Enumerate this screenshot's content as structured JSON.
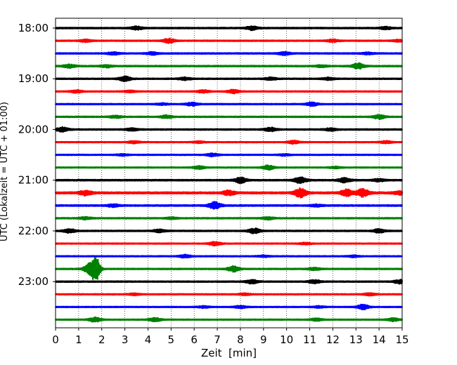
{
  "chart_data": {
    "type": "line",
    "title": "",
    "xlabel": "Zeit  [min]",
    "ylabel": "UTC (Lokalzeit = UTC + 01:00)",
    "xlim": [
      0,
      15
    ],
    "x_ticks": [
      "0",
      "1",
      "2",
      "3",
      "4",
      "5",
      "6",
      "7",
      "8",
      "9",
      "10",
      "11",
      "12",
      "13",
      "14",
      "15"
    ],
    "y_ticks": [
      "18:00",
      "19:00",
      "20:00",
      "21:00",
      "22:00",
      "23:00"
    ],
    "grid": "vertical dotted lines at each minute",
    "trace_colors": [
      "#000000",
      "#ff0000",
      "#0000ff",
      "#008000"
    ],
    "traces": [
      {
        "start": "18:00",
        "noise": 0.18,
        "events": [
          [
            3.5,
            0.5
          ],
          [
            8.5,
            0.6
          ],
          [
            14.3,
            0.4
          ]
        ]
      },
      {
        "start": "18:15",
        "noise": 0.16,
        "events": [
          [
            1.3,
            0.4
          ],
          [
            4.9,
            0.7
          ],
          [
            12.0,
            0.4
          ],
          [
            14.8,
            0.3
          ]
        ]
      },
      {
        "start": "18:30",
        "noise": 0.17,
        "events": [
          [
            2.5,
            0.4
          ],
          [
            4.2,
            0.4
          ],
          [
            9.9,
            0.5
          ],
          [
            13.5,
            0.3
          ]
        ]
      },
      {
        "start": "18:45",
        "noise": 0.18,
        "events": [
          [
            0.6,
            0.5
          ],
          [
            2.2,
            0.4
          ],
          [
            13.1,
            0.9
          ],
          [
            11.5,
            0.3
          ]
        ]
      },
      {
        "start": "19:00",
        "noise": 0.17,
        "events": [
          [
            3.0,
            0.8
          ],
          [
            5.6,
            0.4
          ],
          [
            9.3,
            0.4
          ],
          [
            11.8,
            0.4
          ]
        ]
      },
      {
        "start": "19:15",
        "noise": 0.15,
        "events": [
          [
            0.9,
            0.4
          ],
          [
            3.2,
            0.3
          ],
          [
            7.7,
            0.6
          ],
          [
            6.4,
            0.4
          ]
        ]
      },
      {
        "start": "19:30",
        "noise": 0.16,
        "events": [
          [
            5.9,
            0.5
          ],
          [
            11.1,
            0.6
          ],
          [
            4.6,
            0.3
          ]
        ]
      },
      {
        "start": "19:45",
        "noise": 0.16,
        "events": [
          [
            2.6,
            0.4
          ],
          [
            4.8,
            0.5
          ],
          [
            14.0,
            0.7
          ]
        ]
      },
      {
        "start": "20:00",
        "noise": 0.18,
        "events": [
          [
            0.3,
            0.7
          ],
          [
            3.3,
            0.4
          ],
          [
            9.3,
            0.6
          ],
          [
            11.9,
            0.4
          ]
        ]
      },
      {
        "start": "20:15",
        "noise": 0.14,
        "events": [
          [
            3.4,
            0.4
          ],
          [
            6.2,
            0.3
          ],
          [
            10.3,
            0.5
          ],
          [
            14.3,
            0.4
          ]
        ]
      },
      {
        "start": "20:30",
        "noise": 0.14,
        "events": [
          [
            2.9,
            0.3
          ],
          [
            6.8,
            0.5
          ],
          [
            9.9,
            0.3
          ]
        ]
      },
      {
        "start": "20:45",
        "noise": 0.13,
        "events": [
          [
            6.2,
            0.5
          ],
          [
            9.2,
            0.7
          ],
          [
            12.1,
            0.3
          ]
        ]
      },
      {
        "start": "21:00",
        "noise": 0.2,
        "events": [
          [
            8.0,
            0.9
          ],
          [
            10.6,
            1.0
          ],
          [
            12.5,
            0.7
          ],
          [
            14.0,
            0.4
          ]
        ]
      },
      {
        "start": "21:15",
        "noise": 0.28,
        "events": [
          [
            1.3,
            0.7
          ],
          [
            7.5,
            0.7
          ],
          [
            10.6,
            1.4
          ],
          [
            12.6,
            1.1
          ],
          [
            13.3,
            1.2
          ],
          [
            14.9,
            0.5
          ]
        ]
      },
      {
        "start": "21:30",
        "noise": 0.2,
        "events": [
          [
            2.5,
            0.4
          ],
          [
            6.9,
            1.2
          ],
          [
            11.3,
            0.3
          ]
        ]
      },
      {
        "start": "21:45",
        "noise": 0.16,
        "events": [
          [
            1.3,
            0.4
          ],
          [
            5.0,
            0.3
          ],
          [
            9.2,
            0.4
          ]
        ]
      },
      {
        "start": "22:00",
        "noise": 0.17,
        "events": [
          [
            0.6,
            0.6
          ],
          [
            4.5,
            0.5
          ],
          [
            8.6,
            0.8
          ],
          [
            14.0,
            0.6
          ]
        ]
      },
      {
        "start": "22:15",
        "noise": 0.14,
        "events": [
          [
            6.9,
            0.6
          ],
          [
            10.8,
            0.3
          ]
        ]
      },
      {
        "start": "22:30",
        "noise": 0.14,
        "events": [
          [
            5.6,
            0.5
          ],
          [
            9.0,
            0.3
          ],
          [
            12.9,
            0.3
          ]
        ]
      },
      {
        "start": "22:45",
        "noise": 0.16,
        "events": [
          [
            1.5,
            1.8
          ],
          [
            1.75,
            4.0
          ],
          [
            7.7,
            0.9
          ],
          [
            11.2,
            0.4
          ]
        ]
      },
      {
        "start": "23:00",
        "noise": 0.17,
        "events": [
          [
            8.5,
            0.6
          ],
          [
            11.2,
            0.5
          ],
          [
            14.9,
            0.6
          ]
        ]
      },
      {
        "start": "23:15",
        "noise": 0.14,
        "events": [
          [
            3.4,
            0.3
          ],
          [
            8.2,
            0.3
          ],
          [
            13.6,
            0.4
          ]
        ]
      },
      {
        "start": "23:30",
        "noise": 0.14,
        "events": [
          [
            6.4,
            0.3
          ],
          [
            8.0,
            0.4
          ],
          [
            13.3,
            0.8
          ],
          [
            11.4,
            0.3
          ]
        ]
      },
      {
        "start": "23:45",
        "noise": 0.14,
        "events": [
          [
            1.7,
            0.7
          ],
          [
            4.3,
            0.6
          ],
          [
            11.3,
            0.4
          ],
          [
            14.6,
            0.5
          ]
        ]
      }
    ]
  }
}
